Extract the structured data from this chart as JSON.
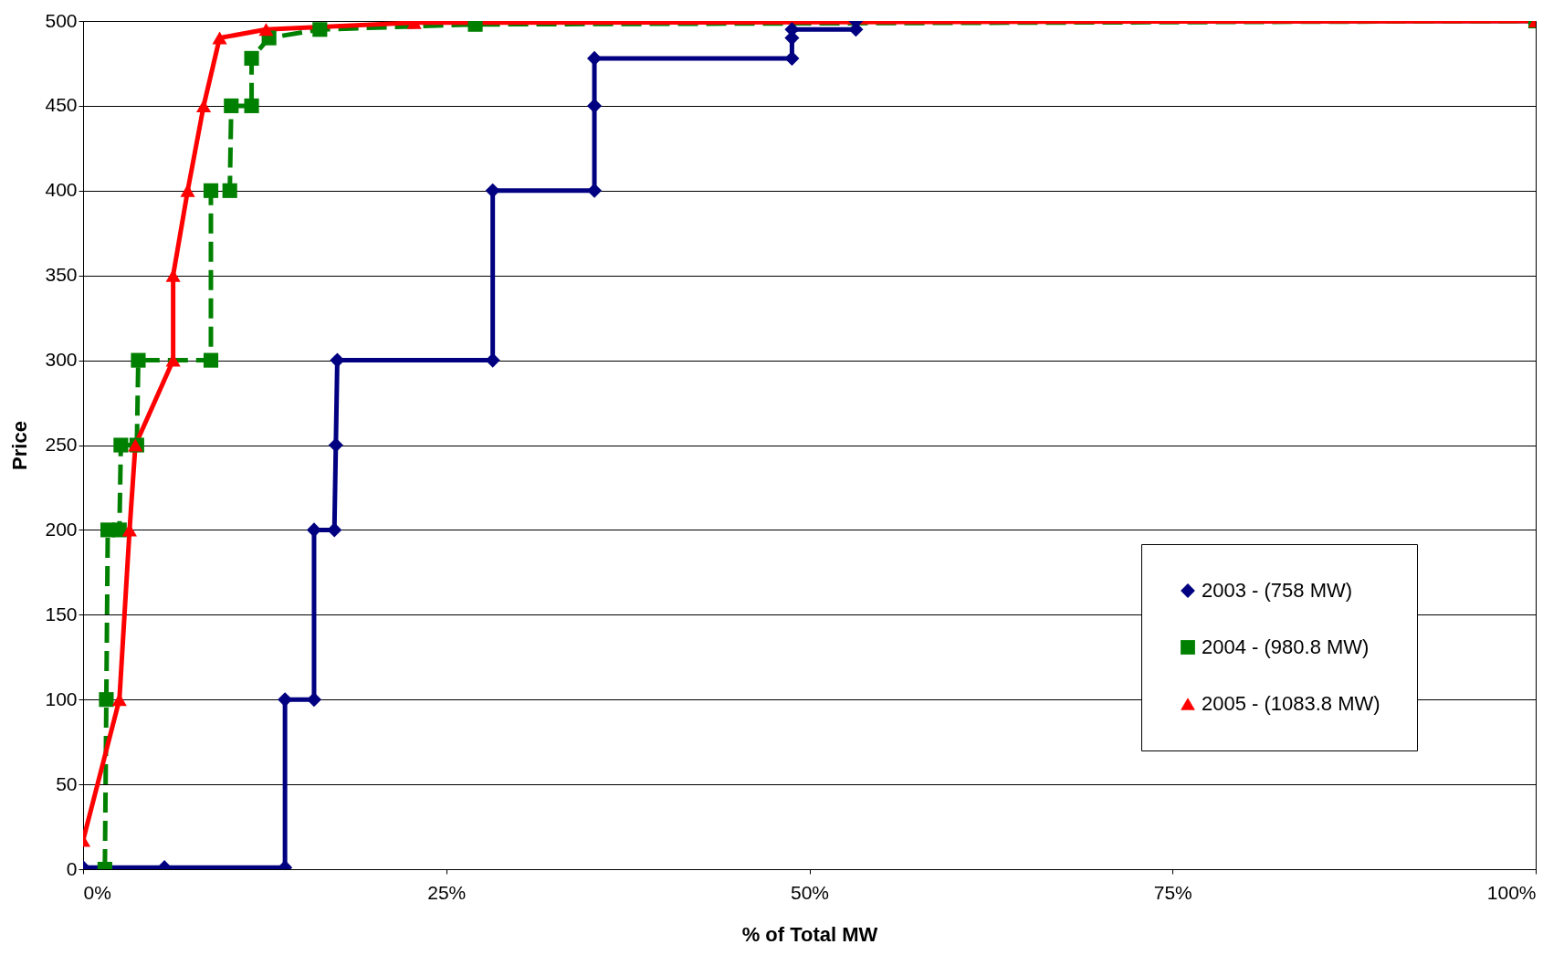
{
  "chart_data": {
    "type": "line",
    "xlabel": "% of Total MW",
    "ylabel": "Price",
    "xlim": [
      0,
      100
    ],
    "xticks": [
      {
        "value": 0,
        "label": "0%"
      },
      {
        "value": 25,
        "label": "25%"
      },
      {
        "value": 50,
        "label": "50%"
      },
      {
        "value": 75,
        "label": "75%"
      },
      {
        "value": 100,
        "label": "100%"
      }
    ],
    "ylim": [
      0,
      500
    ],
    "yticks": [
      0,
      50,
      100,
      150,
      200,
      250,
      300,
      350,
      400,
      450,
      500
    ],
    "grid": "y",
    "legend": "bottom right",
    "series": [
      {
        "name": "2003 - (758 MW)",
        "color": "#000080",
        "marker": "diamond",
        "line_style": "solid",
        "x": [
          0,
          5.6,
          13.9,
          13.9,
          15.9,
          15.9,
          17.3,
          17.4,
          17.5,
          28.2,
          28.2,
          35.2,
          35.2,
          35.2,
          48.8,
          48.8,
          48.8,
          53.2,
          53.2,
          100
        ],
        "values": [
          1,
          1,
          1,
          100,
          100,
          200,
          200,
          250,
          300,
          300,
          400,
          400,
          450,
          478,
          478,
          490,
          495,
          495,
          500,
          500
        ]
      },
      {
        "name": "2004 - (980.8 MW)",
        "color": "#008000",
        "marker": "square",
        "line_style": "dashed",
        "x": [
          1.5,
          1.6,
          1.7,
          2.5,
          2.6,
          3.7,
          3.8,
          8.8,
          8.8,
          10.1,
          10.2,
          11.6,
          11.6,
          12.8,
          16.3,
          27,
          100
        ],
        "values": [
          0,
          100,
          200,
          200,
          250,
          250,
          300,
          300,
          400,
          400,
          450,
          450,
          478,
          490,
          495,
          498,
          500
        ]
      },
      {
        "name": "2005 - (1083.8 MW)",
        "color": "#ff0000",
        "marker": "triangle",
        "line_style": "solid",
        "x": [
          0,
          2.5,
          3.2,
          3.6,
          6.2,
          6.2,
          7.2,
          8.3,
          9.4,
          12.6,
          22.8,
          100
        ],
        "values": [
          17,
          100,
          200,
          250,
          300,
          350,
          400,
          450,
          490,
          495,
          499,
          500
        ]
      }
    ]
  }
}
